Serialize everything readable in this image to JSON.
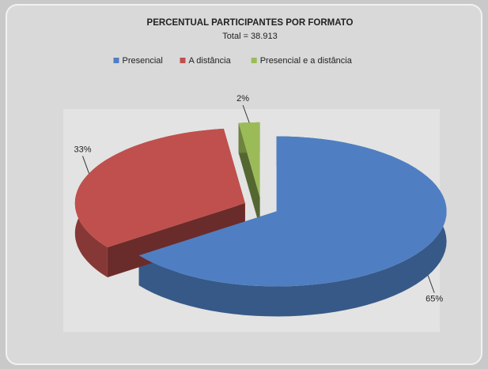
{
  "chart_data": {
    "type": "pie",
    "title": "PERCENTUAL PARTICIPANTES POR FORMATO",
    "subtitle": "Total = 38.913",
    "categories": [
      "Presencial",
      "A distância",
      "Presencial e a distância"
    ],
    "values": [
      65,
      33,
      2
    ],
    "value_labels": [
      "65%",
      "33%",
      "2%"
    ],
    "colors": [
      "#4f7fc2",
      "#c0504d",
      "#9bbb59"
    ],
    "legend": "top"
  }
}
